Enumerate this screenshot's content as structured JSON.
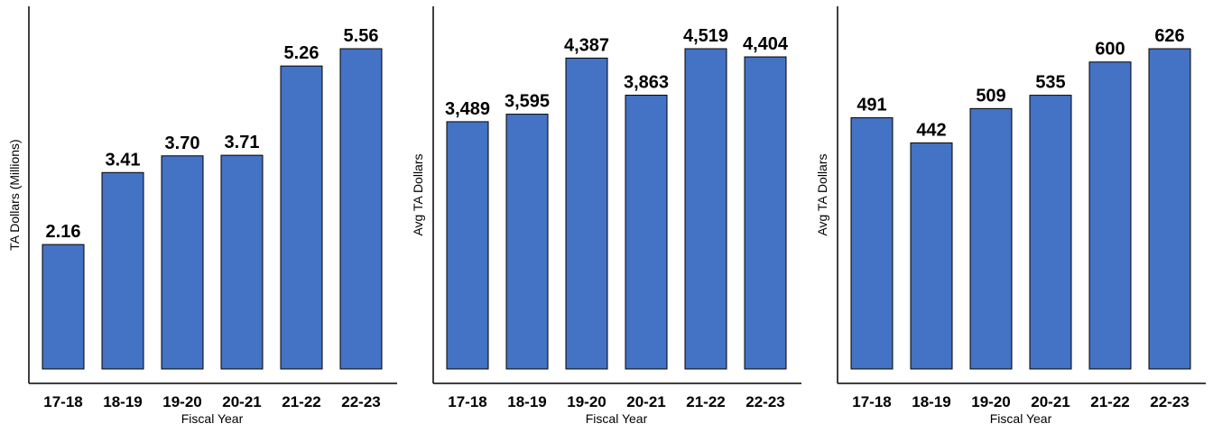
{
  "chart_data": [
    {
      "type": "bar",
      "categories": [
        "17-18",
        "18-19",
        "19-20",
        "20-21",
        "21-22",
        "22-23"
      ],
      "values": [
        2.16,
        3.41,
        3.7,
        3.71,
        5.26,
        5.56
      ],
      "value_labels": [
        "2.16",
        "3.41",
        "3.70",
        "3.71",
        "5.26",
        "5.56"
      ],
      "title": "",
      "xlabel": "Fiscal Year",
      "ylabel": "TA Dollars (Millions)",
      "ylim": [
        0,
        5.56
      ],
      "grid": false,
      "bar_color": "#4472C4"
    },
    {
      "type": "bar",
      "categories": [
        "17-18",
        "18-19",
        "19-20",
        "20-21",
        "21-22",
        "22-23"
      ],
      "values": [
        3489,
        3595,
        4387,
        3863,
        4519,
        4404
      ],
      "value_labels": [
        "3,489",
        "3,595",
        "4,387",
        "3,863",
        "4,519",
        "4,404"
      ],
      "title": "",
      "xlabel": "Fiscal Year",
      "ylabel": "Avg TA Dollars",
      "ylim": [
        0,
        4519
      ],
      "grid": false,
      "bar_color": "#4472C4"
    },
    {
      "type": "bar",
      "categories": [
        "17-18",
        "18-19",
        "19-20",
        "20-21",
        "21-22",
        "22-23"
      ],
      "values": [
        491,
        442,
        509,
        535,
        600,
        626
      ],
      "value_labels": [
        "491",
        "442",
        "509",
        "535",
        "600",
        "626"
      ],
      "title": "",
      "xlabel": "Fiscal Year",
      "ylabel": "Avg TA Dollars",
      "ylim": [
        0,
        626
      ],
      "grid": false,
      "bar_color": "#4472C4"
    }
  ]
}
